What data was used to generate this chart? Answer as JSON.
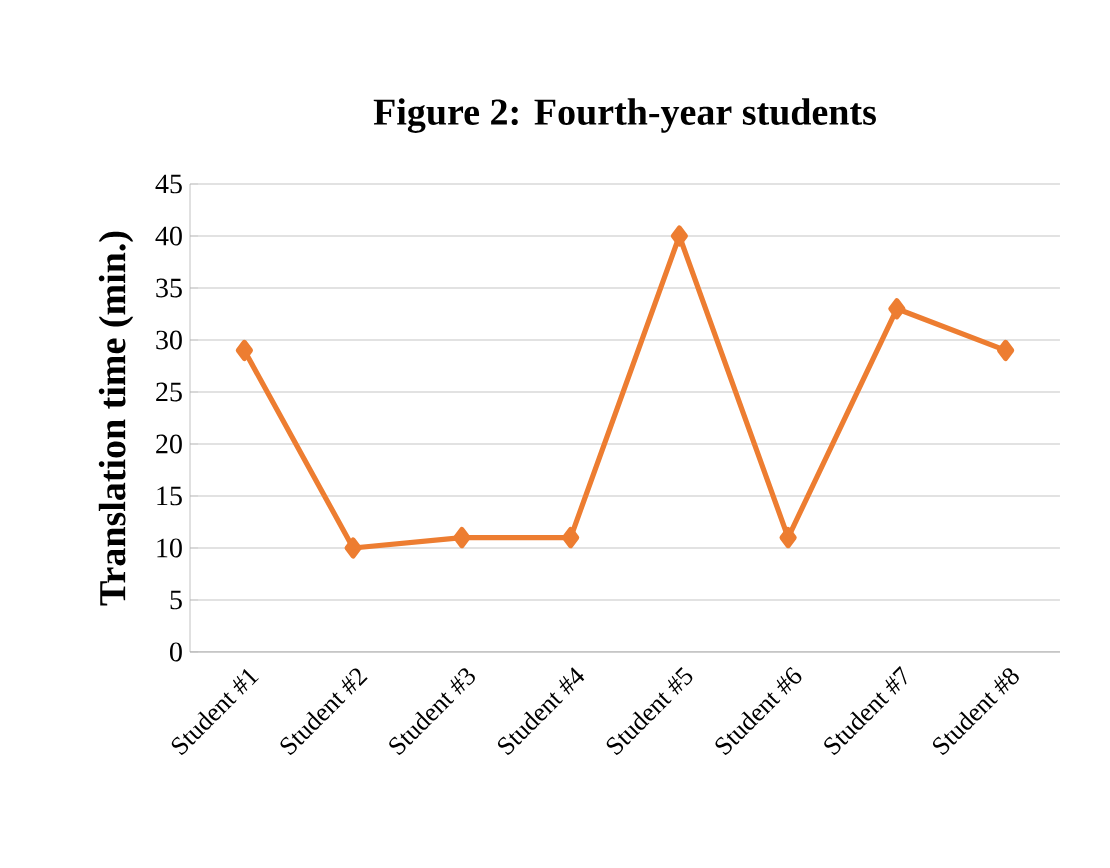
{
  "chart_data": {
    "type": "line",
    "title": "Figure 2: Fourth-year students",
    "ylabel": "Translation time (min.)",
    "categories": [
      "Student #1",
      "Student #2",
      "Student #3",
      "Student #4",
      "Student #5",
      "Student #6",
      "Student #7",
      "Student #8"
    ],
    "values": [
      29,
      10,
      11,
      11,
      40,
      11,
      33,
      29
    ],
    "color": "#ed7d31",
    "ylim": [
      0,
      45
    ],
    "yticks": [
      0,
      5,
      10,
      15,
      20,
      25,
      30,
      35,
      40,
      45
    ],
    "grid": "y",
    "marker": "diamond",
    "line_style": "solid"
  }
}
